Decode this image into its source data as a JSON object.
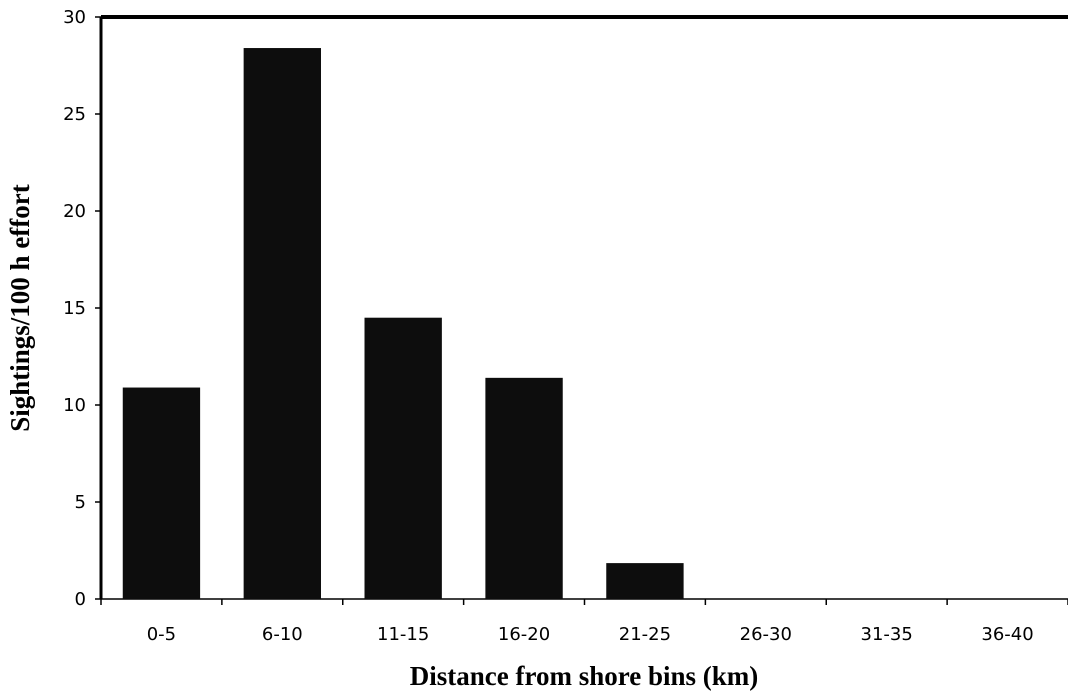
{
  "chart_data": {
    "type": "bar",
    "title": "",
    "xlabel": "Distance from shore bins (km)",
    "ylabel": "Sightings/100 h effort",
    "categories": [
      "0-5",
      "6-10",
      "11-15",
      "16-20",
      "21-25",
      "26-30",
      "31-35",
      "36-40"
    ],
    "values": [
      10.9,
      28.4,
      14.5,
      11.4,
      1.85,
      0,
      0,
      0
    ],
    "ylim": [
      0,
      30
    ],
    "yticks": [
      0,
      5,
      10,
      15,
      20,
      25,
      30
    ],
    "grid": false,
    "legend": "none",
    "bar_color": "#0d0d0d",
    "axis_color": "#000000"
  }
}
